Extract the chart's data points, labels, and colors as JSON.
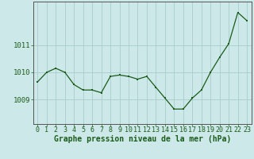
{
  "hours": [
    0,
    1,
    2,
    3,
    4,
    5,
    6,
    7,
    8,
    9,
    10,
    11,
    12,
    13,
    14,
    15,
    16,
    17,
    18,
    19,
    20,
    21,
    22,
    23
  ],
  "pressure": [
    1009.65,
    1010.0,
    1010.15,
    1010.0,
    1009.55,
    1009.35,
    1009.35,
    1009.25,
    1009.85,
    1009.9,
    1009.85,
    1009.75,
    1009.85,
    1009.45,
    1009.05,
    1008.65,
    1008.65,
    1009.05,
    1009.35,
    1010.0,
    1010.55,
    1011.05,
    1012.2,
    1011.9
  ],
  "line_color": "#1a5c1a",
  "marker_color": "#1a5c1a",
  "bg_color": "#cce8e8",
  "grid_color": "#aacccc",
  "axis_color": "#555555",
  "yticks": [
    1009,
    1010,
    1011
  ],
  "xlabel": "Graphe pression niveau de la mer (hPa)",
  "ylim_min": 1008.1,
  "ylim_max": 1012.6,
  "xlabel_fontsize": 7,
  "tick_fontsize": 6
}
